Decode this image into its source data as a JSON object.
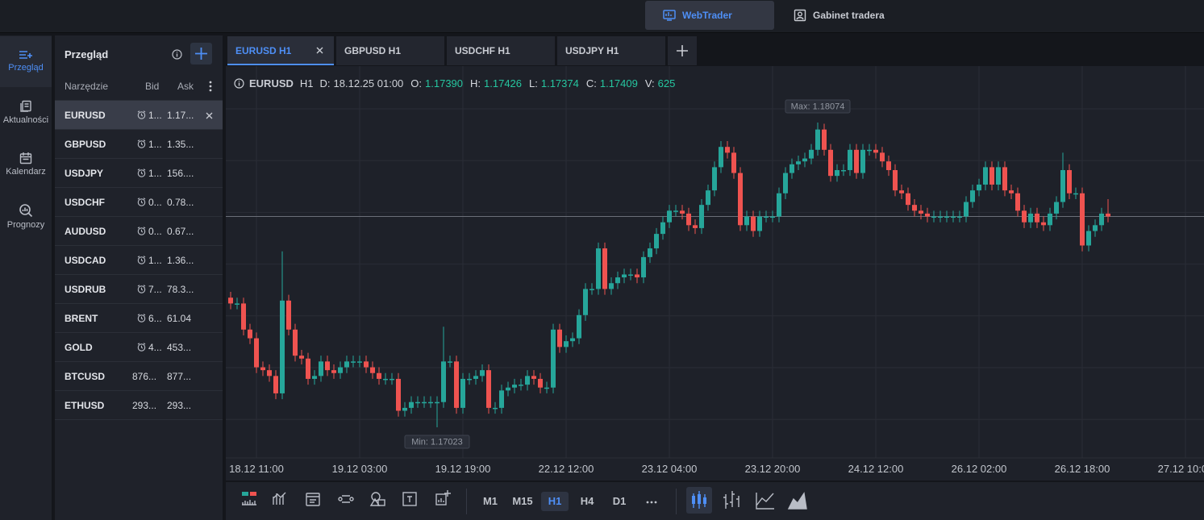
{
  "topbar": {
    "buttons": [
      "WebTrader",
      "Gabinet tradera"
    ]
  },
  "nav": [
    "Przegląd",
    "Aktualności",
    "Kalendarz",
    "Prognozy"
  ],
  "watchlist": {
    "title": "Przegląd",
    "columns": [
      "Narzędzie",
      "Bid",
      "Ask"
    ],
    "rows": [
      [
        "EURUSD",
        "1...",
        "1.17..."
      ],
      [
        "GBPUSD",
        "1...",
        "1.35..."
      ],
      [
        "USDJPY",
        "1...",
        "156...."
      ],
      [
        "USDCHF",
        "0...",
        "0.78..."
      ],
      [
        "AUDUSD",
        "0...",
        "0.67..."
      ],
      [
        "USDCAD",
        "1...",
        "1.36..."
      ],
      [
        "USDRUB",
        "7...",
        "78.3..."
      ],
      [
        "BRENT",
        "6...",
        "61.04"
      ],
      [
        "GOLD",
        "4...",
        "453..."
      ],
      [
        "BTCUSD",
        "876...",
        "877..."
      ],
      [
        "ETHUSD",
        "293...",
        "293..."
      ]
    ]
  },
  "tabs": [
    "EURUSD H1",
    "GBPUSD H1",
    "USDCHF H1",
    "USDJPY H1"
  ],
  "chart_data": {
    "type": "candlestick",
    "symbol": "EURUSD",
    "timeframe": "H1",
    "info": [
      {
        "label": "D:",
        "value": "18.12.25 01:00"
      },
      {
        "label": "O:",
        "value": "1.17390"
      },
      {
        "label": "H:",
        "value": "1.17426"
      },
      {
        "label": "L:",
        "value": "1.17374"
      },
      {
        "label": "C:",
        "value": "1.17409"
      },
      {
        "label": "V:",
        "value": "625"
      }
    ],
    "max_label": "Max: 1.18074",
    "min_label": "Min: 1.17023",
    "up_color": "#26a69a",
    "down_color": "#ef5350",
    "xticks": [
      "18.12 11:00",
      "19.12 03:00",
      "19.12 19:00",
      "22.12 12:00",
      "23.12 04:00",
      "23.12 20:00",
      "24.12 12:00",
      "26.12 02:00",
      "26.12 18:00",
      "27.12 10:00"
    ],
    "open": [
      1.1747,
      1.1745,
      1.1745,
      1.1736,
      1.1733,
      1.1723,
      1.1722,
      1.172,
      1.1714,
      1.1746,
      1.1736,
      1.1727,
      1.1726,
      1.1719,
      1.172,
      1.1725,
      1.1722,
      1.1721,
      1.1723,
      1.1725,
      1.1725,
      1.1725,
      1.1723,
      1.1721,
      1.1719,
      1.1719,
      1.1719,
      1.1708,
      1.1709,
      1.1711,
      1.1711,
      1.1711,
      1.1711,
      1.1711,
      1.1725,
      1.1725,
      1.1709,
      1.1719,
      1.1719,
      1.172,
      1.1722,
      1.1709,
      1.1709,
      1.1715,
      1.1716,
      1.1717,
      1.1717,
      1.172,
      1.1719,
      1.1716,
      1.1716,
      1.1736,
      1.173,
      1.1732,
      1.1733,
      1.1741,
      1.175,
      1.175,
      1.1764,
      1.175,
      1.1752,
      1.1754,
      1.1755,
      1.1755,
      1.1754,
      1.1761,
      1.1764,
      1.1769,
      1.1773,
      1.1777,
      1.1777,
      1.1776,
      1.1772,
      1.1771,
      1.1779,
      1.1784,
      1.1792,
      1.1799,
      1.1797,
      1.179,
      1.1772,
      1.1775,
      1.177,
      1.1775,
      1.1775,
      1.1775,
      1.1783,
      1.179,
      1.1793,
      1.1794,
      1.1795,
      1.1798,
      1.1805,
      1.1798,
      1.1789,
      1.1791,
      1.1791,
      1.1798,
      1.179,
      1.1798,
      1.1798,
      1.1797,
      1.1794,
      1.1791,
      1.1784,
      1.1783,
      1.1779,
      1.1777,
      1.1776,
      1.1775,
      1.1775,
      1.1775,
      1.1775,
      1.1775,
      1.1775,
      1.178,
      1.1784,
      1.1786,
      1.1792,
      1.1786,
      1.1792,
      1.1784,
      1.1783,
      1.1777,
      1.1773,
      1.1776,
      1.1773,
      1.1772,
      1.1776,
      1.178,
      1.1791,
      1.1783,
      1.1783,
      1.1765,
      1.177,
      1.1772,
      1.1776
    ],
    "high": [
      1.1749,
      1.1747,
      1.1747,
      1.1738,
      1.1735,
      1.1725,
      1.1724,
      1.1722,
      1.1763,
      1.1748,
      1.1738,
      1.1729,
      1.1728,
      1.1722,
      1.1727,
      1.1727,
      1.1724,
      1.1725,
      1.1727,
      1.1727,
      1.1727,
      1.1727,
      1.1725,
      1.1723,
      1.1721,
      1.1721,
      1.1721,
      1.1711,
      1.1713,
      1.1713,
      1.1713,
      1.1713,
      1.1713,
      1.1737,
      1.1727,
      1.1727,
      1.1721,
      1.1721,
      1.1722,
      1.1724,
      1.1724,
      1.1711,
      1.1717,
      1.1718,
      1.1719,
      1.1719,
      1.1722,
      1.1722,
      1.1721,
      1.1718,
      1.1738,
      1.1738,
      1.1734,
      1.1735,
      1.1743,
      1.1752,
      1.1752,
      1.1766,
      1.1766,
      1.1754,
      1.1756,
      1.1757,
      1.1757,
      1.1757,
      1.1763,
      1.1766,
      1.1771,
      1.1775,
      1.1779,
      1.1779,
      1.1779,
      1.1778,
      1.1774,
      1.1781,
      1.1786,
      1.1794,
      1.1801,
      1.1801,
      1.1799,
      1.1792,
      1.1777,
      1.1777,
      1.1777,
      1.1777,
      1.1777,
      1.1785,
      1.1792,
      1.1795,
      1.1796,
      1.1797,
      1.18,
      1.18074,
      1.1807,
      1.18,
      1.1793,
      1.1793,
      1.18,
      1.18,
      1.18,
      1.18,
      1.18,
      1.1799,
      1.1796,
      1.1793,
      1.1786,
      1.1785,
      1.1781,
      1.1779,
      1.1778,
      1.1777,
      1.1777,
      1.1777,
      1.1777,
      1.1777,
      1.1782,
      1.1786,
      1.1788,
      1.1794,
      1.1794,
      1.1794,
      1.1794,
      1.1786,
      1.1785,
      1.1779,
      1.1778,
      1.1778,
      1.1775,
      1.1778,
      1.1782,
      1.1797,
      1.1793,
      1.1785,
      1.1785,
      1.1772,
      1.1774,
      1.1778,
      1.1781
    ],
    "low": [
      1.1743,
      1.1743,
      1.1734,
      1.1731,
      1.1721,
      1.172,
      1.1718,
      1.1712,
      1.1712,
      1.1734,
      1.1725,
      1.1724,
      1.1717,
      1.1717,
      1.1718,
      1.172,
      1.1719,
      1.1719,
      1.1721,
      1.1723,
      1.1723,
      1.1721,
      1.1719,
      1.1717,
      1.1717,
      1.1717,
      1.1706,
      1.1706,
      1.1707,
      1.1709,
      1.1709,
      1.1709,
      1.17023,
      1.1709,
      1.1723,
      1.1707,
      1.1707,
      1.1717,
      1.1717,
      1.1718,
      1.1707,
      1.1707,
      1.1707,
      1.1713,
      1.1714,
      1.1715,
      1.1715,
      1.1717,
      1.1714,
      1.1714,
      1.1714,
      1.1728,
      1.1728,
      1.173,
      1.1731,
      1.1739,
      1.1748,
      1.1748,
      1.1748,
      1.1748,
      1.175,
      1.1752,
      1.1753,
      1.1752,
      1.1752,
      1.1759,
      1.1762,
      1.1767,
      1.1771,
      1.1775,
      1.1774,
      1.177,
      1.1769,
      1.1769,
      1.1777,
      1.1782,
      1.179,
      1.1795,
      1.1788,
      1.177,
      1.177,
      1.1768,
      1.1768,
      1.1773,
      1.1773,
      1.1773,
      1.1781,
      1.1788,
      1.1791,
      1.1792,
      1.1793,
      1.1796,
      1.1796,
      1.1787,
      1.1787,
      1.1789,
      1.1789,
      1.1788,
      1.1788,
      1.1796,
      1.1795,
      1.1792,
      1.1789,
      1.1782,
      1.1781,
      1.1777,
      1.1775,
      1.1774,
      1.1773,
      1.1773,
      1.1773,
      1.1773,
      1.1773,
      1.1773,
      1.1773,
      1.1778,
      1.1782,
      1.1784,
      1.1784,
      1.1784,
      1.1782,
      1.1781,
      1.1775,
      1.1771,
      1.1771,
      1.1771,
      1.177,
      1.177,
      1.1774,
      1.1778,
      1.1781,
      1.1781,
      1.1763,
      1.1763,
      1.1768,
      1.177,
      1.1773
    ],
    "close": [
      1.1745,
      1.1745,
      1.1736,
      1.1733,
      1.1723,
      1.1722,
      1.172,
      1.1714,
      1.1746,
      1.1736,
      1.1727,
      1.1726,
      1.1719,
      1.172,
      1.1725,
      1.1722,
      1.1721,
      1.1723,
      1.1725,
      1.1725,
      1.1725,
      1.1723,
      1.1721,
      1.1719,
      1.1719,
      1.1719,
      1.1708,
      1.1709,
      1.1711,
      1.1711,
      1.1711,
      1.1711,
      1.1711,
      1.1725,
      1.1725,
      1.1709,
      1.1719,
      1.1719,
      1.172,
      1.1722,
      1.1709,
      1.1709,
      1.1715,
      1.1716,
      1.1717,
      1.1717,
      1.172,
      1.1719,
      1.1716,
      1.1716,
      1.1736,
      1.173,
      1.1732,
      1.1733,
      1.1741,
      1.175,
      1.175,
      1.1764,
      1.175,
      1.1752,
      1.1754,
      1.1755,
      1.1755,
      1.1754,
      1.1761,
      1.1764,
      1.1769,
      1.1773,
      1.1777,
      1.1777,
      1.1776,
      1.1772,
      1.1771,
      1.1779,
      1.1784,
      1.1792,
      1.1799,
      1.1797,
      1.179,
      1.1772,
      1.1775,
      1.177,
      1.1775,
      1.1775,
      1.1775,
      1.1783,
      1.179,
      1.1793,
      1.1794,
      1.1795,
      1.1798,
      1.1805,
      1.1798,
      1.1789,
      1.1791,
      1.1791,
      1.1798,
      1.179,
      1.1798,
      1.1798,
      1.1797,
      1.1794,
      1.1791,
      1.1784,
      1.1783,
      1.1779,
      1.1777,
      1.1776,
      1.1775,
      1.1775,
      1.1775,
      1.1775,
      1.1775,
      1.1775,
      1.178,
      1.1784,
      1.1786,
      1.1792,
      1.1786,
      1.1792,
      1.1784,
      1.1783,
      1.1777,
      1.1773,
      1.1776,
      1.1773,
      1.1772,
      1.1776,
      1.178,
      1.1791,
      1.1783,
      1.1783,
      1.1765,
      1.177,
      1.1772,
      1.1776,
      1.1775
    ]
  },
  "toolbar": {
    "timeframes": [
      "M1",
      "M15",
      "H1",
      "H4",
      "D1"
    ]
  }
}
